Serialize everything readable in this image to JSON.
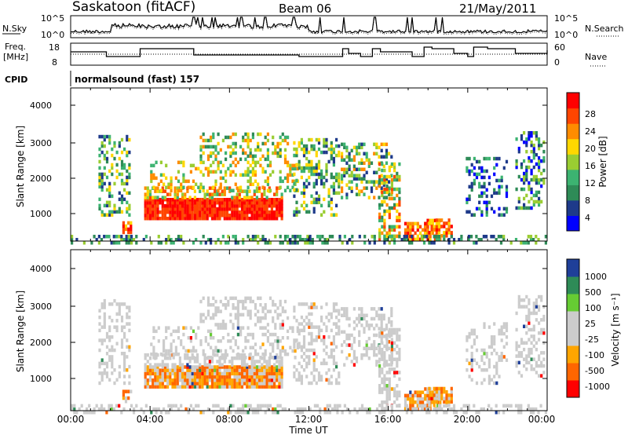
{
  "header": {
    "station": "Saskatoon (fitACF)",
    "beam": "Beam 06",
    "date": "21/May/2011"
  },
  "noise_panel": {
    "left_label": "N.Sky",
    "right_label": "N.Search",
    "ticks_left": [
      "10^5",
      "10^0"
    ],
    "ticks_right": [
      "10^5",
      "10^0"
    ]
  },
  "freq_panel": {
    "left_label_1": "Freq.",
    "left_label_2": "[MHz]",
    "right_label": "Nave",
    "ticks_left": [
      "18",
      "8"
    ],
    "ticks_right": [
      "60",
      "0"
    ]
  },
  "cpid": {
    "label": "CPID",
    "value": "normalsound (fast) 157"
  },
  "colors": {
    "power_scale": [
      "#0000ff",
      "#1e3a8a",
      "#2e8b57",
      "#3cb371",
      "#9acd32",
      "#ffd700",
      "#ff8c00",
      "#ff4500",
      "#ff0000"
    ],
    "velocity_scale": [
      "#ff0000",
      "#ff6600",
      "#ffa500",
      "#cccccc",
      "#cccccc",
      "#66cc33",
      "#2e8b57",
      "#1f3f99"
    ]
  },
  "chart_data": [
    {
      "type": "heatmap",
      "name": "power",
      "ylabel": "Slant Range [km]",
      "yticks": [
        "1000",
        "2000",
        "3000",
        "4000"
      ],
      "ylim": [
        200,
        4600
      ],
      "xlim": [
        0,
        24
      ],
      "colorbar_label": "Power [dB]",
      "colorbar_ticks": [
        "4",
        "8",
        "12",
        "16",
        "20",
        "24",
        "28"
      ],
      "crange": [
        0,
        32
      ]
    },
    {
      "type": "heatmap",
      "name": "velocity",
      "ylabel": "Slant Range [km]",
      "yticks": [
        "1000",
        "2000",
        "3000",
        "4000"
      ],
      "ylim": [
        200,
        4600
      ],
      "xlim": [
        0,
        24
      ],
      "colorbar_label": "Velocity [m s⁻¹]",
      "colorbar_ticks": [
        "-1000",
        "-500",
        "-100",
        "-25",
        "25",
        "100",
        "500",
        "1000"
      ]
    }
  ],
  "x_axis": {
    "ticks": [
      "00:00",
      "04:00",
      "08:00",
      "12:00",
      "16:00",
      "20:00",
      "00:00"
    ],
    "label": "Time UT"
  }
}
